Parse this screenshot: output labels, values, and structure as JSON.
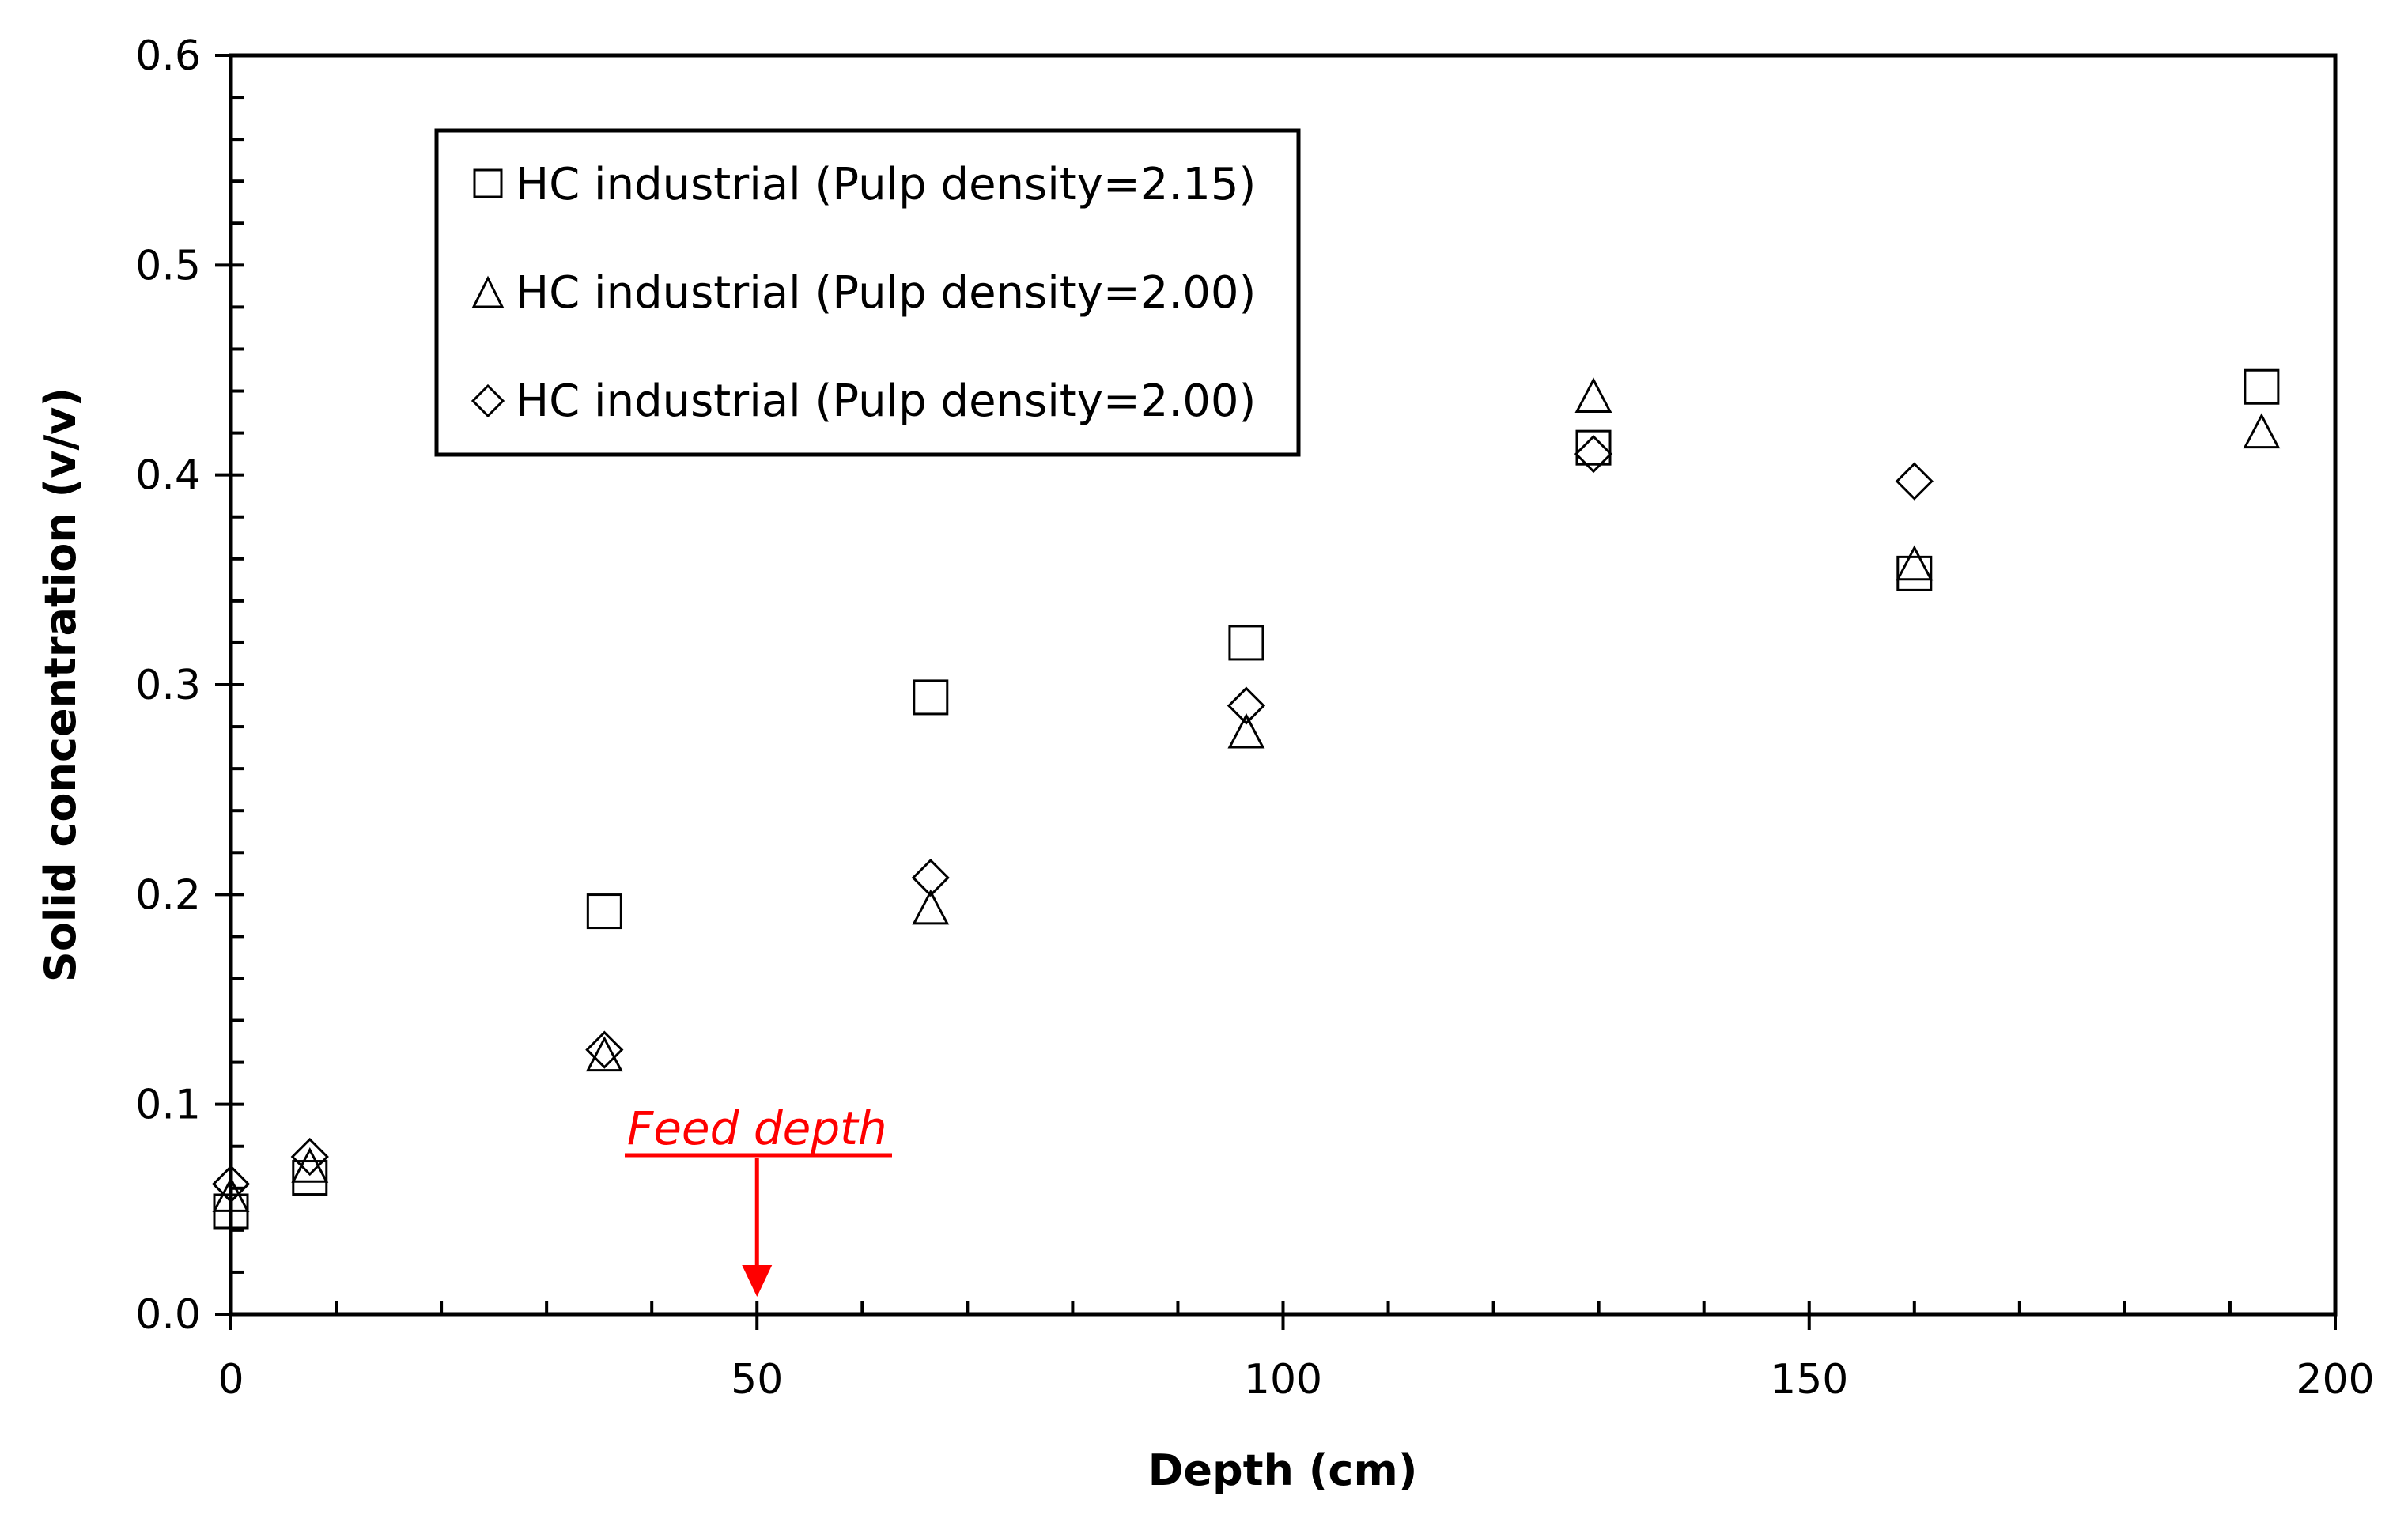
{
  "chart_data": {
    "type": "scatter",
    "title": "",
    "xlabel": "Depth (cm)",
    "ylabel": "Solid concentration  (v/v)",
    "xlim": [
      0,
      200
    ],
    "ylim": [
      0,
      0.6
    ],
    "xticks": [
      0,
      50,
      100,
      150,
      200
    ],
    "yticks": [
      0.0,
      0.1,
      0.2,
      0.3,
      0.4,
      0.5,
      0.6
    ],
    "ytick_labels": [
      "0.0",
      "0.1",
      "0.2",
      "0.3",
      "0.4",
      "0.5",
      "0.6"
    ],
    "xtick_labels": [
      "0",
      "50",
      "100",
      "150",
      "200"
    ],
    "grid": false,
    "legend_position": "top-left",
    "series": [
      {
        "name": "HC industrial (Pulp density=2.15)",
        "marker": "square",
        "x": [
          0,
          7.5,
          35.5,
          66.5,
          96.5,
          129.5,
          160,
          193
        ],
        "y": [
          0.049,
          0.065,
          0.192,
          0.294,
          0.32,
          0.413,
          0.353,
          0.442
        ]
      },
      {
        "name": "HC industrial (Pulp density=2.00)",
        "marker": "triangle",
        "x": [
          0,
          7.5,
          35.5,
          66.5,
          96.5,
          129.5,
          160,
          193
        ],
        "y": [
          0.056,
          0.07,
          0.123,
          0.193,
          0.277,
          0.437,
          0.357,
          0.42
        ]
      },
      {
        "name": "HC industrial (Pulp density=2.00)",
        "marker": "diamond",
        "x": [
          0,
          7.5,
          35.5,
          66.5,
          96.5,
          129.5,
          160
        ],
        "y": [
          0.062,
          0.075,
          0.126,
          0.208,
          0.29,
          0.41,
          0.397
        ]
      }
    ],
    "annotations": [
      {
        "text": "Feed depth",
        "x": 50,
        "y": 0.0,
        "color": "#ff0000"
      }
    ]
  }
}
